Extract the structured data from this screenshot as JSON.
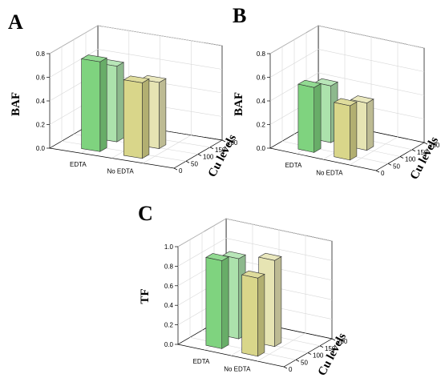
{
  "chart_data": [
    {
      "type": "bar",
      "panel": "A",
      "ylabel": "BAF",
      "depth_label": "Cu levels",
      "categories": [
        "EDTA",
        "No EDTA"
      ],
      "depth_ticks": [
        "0",
        "50",
        "100",
        "150",
        "200"
      ],
      "yticks": [
        "0.0",
        "0.2",
        "0.4",
        "0.6",
        "0.8"
      ],
      "ylim": [
        0,
        0.8
      ],
      "series": [
        {
          "color": "#7fd37f",
          "values": [
            0.76,
            0.64
          ]
        },
        {
          "color": "#d9d68a",
          "values": [
            0.64,
            0.56
          ]
        }
      ]
    },
    {
      "type": "bar",
      "panel": "B",
      "ylabel": "BAF",
      "depth_label": "Cu levels",
      "categories": [
        "EDTA",
        "No EDTA"
      ],
      "depth_ticks": [
        "0",
        "50",
        "100",
        "150",
        "200"
      ],
      "yticks": [
        "0.0",
        "0.2",
        "0.4",
        "0.6",
        "0.8"
      ],
      "ylim": [
        0,
        0.8
      ],
      "series": [
        {
          "color": "#7fd37f",
          "values": [
            0.55,
            0.48
          ]
        },
        {
          "color": "#d9d68a",
          "values": [
            0.46,
            0.4
          ]
        }
      ]
    },
    {
      "type": "bar",
      "panel": "C",
      "ylabel": "TF",
      "depth_label": "Cu levels",
      "categories": [
        "EDTA",
        "No EDTA"
      ],
      "depth_ticks": [
        "0",
        "50",
        "100",
        "150",
        "200"
      ],
      "yticks": [
        "0.0",
        "0.2",
        "0.4",
        "0.6",
        "0.8",
        "1.0"
      ],
      "ylim": [
        0,
        1.0
      ],
      "series": [
        {
          "color": "#7fd37f",
          "values": [
            0.9,
            0.82
          ]
        },
        {
          "color": "#d9d68a",
          "values": [
            0.8,
            0.88
          ]
        }
      ]
    }
  ]
}
